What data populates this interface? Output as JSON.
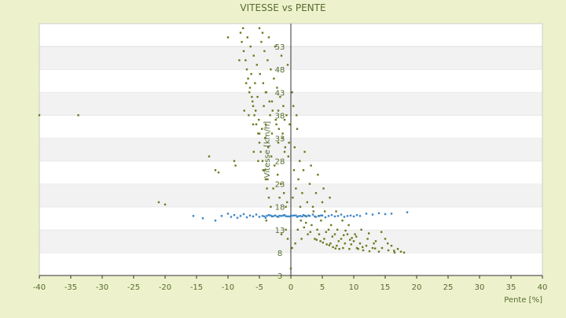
{
  "chart_data": {
    "type": "scatter",
    "title": "VITESSE vs PENTE",
    "xlabel": "Pente [%]",
    "ylabel": "Vitesse [km/h]",
    "xlim": [
      -40,
      40
    ],
    "ylim": [
      3,
      58
    ],
    "x_ticks": [
      -40,
      -35,
      -30,
      -25,
      -20,
      -15,
      -10,
      -5,
      0,
      5,
      10,
      15,
      20,
      25,
      30,
      35,
      40
    ],
    "y_tick_values": [
      3,
      8,
      13,
      18,
      23,
      28,
      33,
      38,
      43,
      48,
      53
    ],
    "y_tick_labels": [
      "3",
      "8",
      "13",
      "18",
      "23",
      "28",
      "33",
      "38",
      "43",
      "48",
      "53"
    ],
    "grid": "horizontal alternating bands",
    "legend": "none",
    "colors": {
      "background": "#eef2cc",
      "band_light": "#ffffff",
      "band_dark": "#f2f2f2",
      "text": "#556b2f",
      "series_a": "#6b7a1e",
      "series_b": "#3d85c6"
    },
    "series": [
      {
        "color": "#6b7a1e",
        "points": [
          [
            -40,
            38
          ],
          [
            -33.8,
            38
          ],
          [
            -21,
            19
          ],
          [
            -20,
            18.5
          ],
          [
            -13,
            29
          ],
          [
            -12,
            26
          ],
          [
            -11.5,
            25.5
          ],
          [
            -10,
            55
          ],
          [
            -9,
            28
          ],
          [
            -8.8,
            27
          ],
          [
            -8,
            56
          ],
          [
            -7.8,
            54
          ],
          [
            -7.5,
            52
          ],
          [
            -7.2,
            50
          ],
          [
            -7,
            48
          ],
          [
            -6.8,
            46
          ],
          [
            -6.5,
            44
          ],
          [
            -6.2,
            42
          ],
          [
            -6,
            40
          ],
          [
            -5.8,
            38
          ],
          [
            -5.5,
            36
          ],
          [
            -5.2,
            34
          ],
          [
            -5,
            32
          ],
          [
            -4.8,
            30
          ],
          [
            -4.5,
            28
          ],
          [
            -4.2,
            26
          ],
          [
            -4,
            24
          ],
          [
            -3.8,
            22
          ],
          [
            -3.5,
            20
          ],
          [
            -3.2,
            18
          ],
          [
            -7.6,
            57
          ],
          [
            -6.9,
            55
          ],
          [
            -6.4,
            53
          ],
          [
            -5.9,
            51
          ],
          [
            -5.4,
            49
          ],
          [
            -4.9,
            47
          ],
          [
            -4.4,
            45
          ],
          [
            -3.9,
            43
          ],
          [
            -3.4,
            41
          ],
          [
            -2.9,
            39
          ],
          [
            -2.4,
            37
          ],
          [
            -1.9,
            35
          ],
          [
            -1.4,
            33
          ],
          [
            -0.9,
            31
          ],
          [
            -0.4,
            29
          ],
          [
            -7.1,
            45
          ],
          [
            -6.6,
            43
          ],
          [
            -6.1,
            41
          ],
          [
            -5.6,
            39
          ],
          [
            -5.1,
            37
          ],
          [
            -4.6,
            35
          ],
          [
            -4.1,
            33
          ],
          [
            -3.6,
            31
          ],
          [
            -3.1,
            29
          ],
          [
            -2.6,
            27
          ],
          [
            -2.1,
            25
          ],
          [
            -1.6,
            23
          ],
          [
            -1.1,
            21
          ],
          [
            -0.6,
            19
          ],
          [
            -8.2,
            50
          ],
          [
            -4.7,
            54
          ],
          [
            -4.2,
            52
          ],
          [
            -3.7,
            50
          ],
          [
            -3.2,
            48
          ],
          [
            -2.7,
            46
          ],
          [
            -2.2,
            44
          ],
          [
            -1.7,
            42
          ],
          [
            -1.2,
            40
          ],
          [
            -0.7,
            38
          ],
          [
            -0.2,
            36
          ],
          [
            -5.3,
            42
          ],
          [
            -4.3,
            40
          ],
          [
            -3.3,
            38
          ],
          [
            -2.3,
            36
          ],
          [
            -1.3,
            34
          ],
          [
            -0.3,
            32
          ],
          [
            -6.3,
            47
          ],
          [
            -5.7,
            45
          ],
          [
            -4.0,
            43
          ],
          [
            -3.0,
            41
          ],
          [
            -2.0,
            39
          ],
          [
            -1.0,
            37
          ],
          [
            -5.0,
            57
          ],
          [
            -4.5,
            56
          ],
          [
            -3.5,
            55
          ],
          [
            -2.5,
            53
          ],
          [
            -1.5,
            51
          ],
          [
            -0.5,
            49
          ],
          [
            -6.0,
            36
          ],
          [
            -5.0,
            34
          ],
          [
            -4.0,
            36
          ],
          [
            -3.0,
            34
          ],
          [
            -2.0,
            32
          ],
          [
            -1.0,
            30
          ],
          [
            -7.4,
            39
          ],
          [
            -6.7,
            38
          ],
          [
            -5.9,
            30
          ],
          [
            -5.2,
            28
          ],
          [
            -4.4,
            26
          ],
          [
            -3.7,
            24
          ],
          [
            -2.8,
            22
          ],
          [
            -1.8,
            20
          ],
          [
            -0.8,
            18
          ],
          [
            -3.9,
            15
          ],
          [
            -1.5,
            12
          ],
          [
            -0.8,
            13
          ],
          [
            -0.5,
            11
          ],
          [
            0.2,
            9
          ],
          [
            0,
            4.5
          ],
          [
            0.3,
            20
          ],
          [
            0.8,
            22
          ],
          [
            1.2,
            24
          ],
          [
            1.5,
            18
          ],
          [
            1.8,
            21
          ],
          [
            2.0,
            26
          ],
          [
            2.3,
            16
          ],
          [
            2.6,
            19
          ],
          [
            3.0,
            23
          ],
          [
            3.3,
            14
          ],
          [
            3.6,
            17
          ],
          [
            4.0,
            21
          ],
          [
            4.2,
            13
          ],
          [
            4.5,
            12
          ],
          [
            4.8,
            15
          ],
          [
            5.0,
            19
          ],
          [
            5.3,
            11
          ],
          [
            5.6,
            12.5
          ],
          [
            6.0,
            13
          ],
          [
            6.3,
            10
          ],
          [
            6.6,
            11.5
          ],
          [
            7.0,
            12
          ],
          [
            7.3,
            9.5
          ],
          [
            7.6,
            10.5
          ],
          [
            8.0,
            11
          ],
          [
            8.3,
            9
          ],
          [
            8.6,
            10
          ],
          [
            9.0,
            12
          ],
          [
            9.3,
            8.8
          ],
          [
            9.6,
            9.8
          ],
          [
            10.0,
            10.5
          ],
          [
            10.5,
            9
          ],
          [
            11.0,
            10
          ],
          [
            11.5,
            8.5
          ],
          [
            12.0,
            9.5
          ],
          [
            12.5,
            8.3
          ],
          [
            13.0,
            9
          ],
          [
            13.5,
            10.5
          ],
          [
            14.0,
            8.2
          ],
          [
            14.5,
            9
          ],
          [
            15.0,
            11
          ],
          [
            15.5,
            8.5
          ],
          [
            16.0,
            9.5
          ],
          [
            16.5,
            8
          ],
          [
            17.0,
            8.8
          ],
          [
            17.5,
            8.2
          ],
          [
            18.0,
            8
          ],
          [
            1.0,
            35
          ],
          [
            0.6,
            31
          ],
          [
            1.4,
            28
          ],
          [
            2.2,
            30
          ],
          [
            3.2,
            27
          ],
          [
            4.3,
            25
          ],
          [
            5.2,
            22
          ],
          [
            6.2,
            20
          ],
          [
            7.2,
            17
          ],
          [
            8.2,
            15
          ],
          [
            9.2,
            14
          ],
          [
            10.2,
            12
          ],
          [
            11.2,
            13
          ],
          [
            12.2,
            11
          ],
          [
            13.2,
            10
          ],
          [
            3.8,
            11
          ],
          [
            4.7,
            10.5
          ],
          [
            5.7,
            9.8
          ],
          [
            6.7,
            9.2
          ],
          [
            7.7,
            8.8
          ],
          [
            8.7,
            12.8
          ],
          [
            9.7,
            11.2
          ],
          [
            10.7,
            8.8
          ],
          [
            2.7,
            12
          ],
          [
            1.7,
            11
          ],
          [
            0.7,
            10
          ],
          [
            1.1,
            13
          ],
          [
            2.1,
            13.5
          ],
          [
            3.1,
            12.5
          ],
          [
            4.1,
            10.8
          ],
          [
            5.1,
            10.2
          ],
          [
            6.1,
            9.6
          ],
          [
            7.1,
            8.9
          ],
          [
            0.4,
            40
          ],
          [
            0.9,
            38
          ],
          [
            0.2,
            43
          ],
          [
            0.5,
            26
          ],
          [
            1.6,
            15
          ],
          [
            2.4,
            14.5
          ],
          [
            3.5,
            18
          ],
          [
            4.4,
            16
          ],
          [
            5.4,
            17
          ],
          [
            6.4,
            14
          ],
          [
            7.4,
            13
          ],
          [
            8.4,
            11.8
          ],
          [
            9.4,
            10.8
          ],
          [
            10.4,
            11.5
          ],
          [
            11.4,
            9.2
          ],
          [
            12.4,
            12.2
          ],
          [
            13.4,
            8.9
          ],
          [
            14.4,
            12.5
          ],
          [
            15.4,
            10
          ],
          [
            16.4,
            8.4
          ]
        ]
      },
      {
        "color": "#3d85c6",
        "points": [
          [
            -15.5,
            16
          ],
          [
            -14,
            15.5
          ],
          [
            -12,
            15
          ],
          [
            -11,
            16
          ],
          [
            -10,
            16.5
          ],
          [
            -9.5,
            15.8
          ],
          [
            -9,
            16.2
          ],
          [
            -8.5,
            15.6
          ],
          [
            -8,
            16
          ],
          [
            -7.5,
            16.4
          ],
          [
            -7,
            15.7
          ],
          [
            -6.5,
            16.1
          ],
          [
            -6,
            15.9
          ],
          [
            -5.5,
            16.3
          ],
          [
            -5,
            15.8
          ],
          [
            -4.5,
            16
          ],
          [
            -4,
            15.6
          ],
          [
            -3.5,
            16.2
          ],
          [
            -3,
            15.9
          ],
          [
            -2.5,
            16.1
          ],
          [
            -2,
            15.8
          ],
          [
            -1.5,
            16
          ],
          [
            -1,
            16.2
          ],
          [
            -0.5,
            15.9
          ],
          [
            0,
            16
          ],
          [
            0.5,
            16.1
          ],
          [
            1,
            15.8
          ],
          [
            1.5,
            16
          ],
          [
            2,
            16.2
          ],
          [
            2.5,
            15.9
          ],
          [
            3,
            16
          ],
          [
            3.5,
            16.3
          ],
          [
            4,
            15.8
          ],
          [
            4.5,
            16
          ],
          [
            5,
            16.1
          ],
          [
            5.5,
            15.7
          ],
          [
            6,
            16
          ],
          [
            6.5,
            16.2
          ],
          [
            7,
            15.9
          ],
          [
            7.5,
            16
          ],
          [
            8,
            16.3
          ],
          [
            8.5,
            15.8
          ],
          [
            9,
            16
          ],
          [
            9.5,
            16.1
          ],
          [
            10,
            15.9
          ],
          [
            10.5,
            16.2
          ],
          [
            11,
            16
          ],
          [
            12,
            16.5
          ],
          [
            13,
            16.3
          ],
          [
            14,
            16.6
          ],
          [
            15,
            16.4
          ],
          [
            16,
            16.5
          ],
          [
            18.5,
            16.8
          ],
          [
            -3.8,
            16.05
          ],
          [
            -2.8,
            15.95
          ],
          [
            -1.8,
            16.05
          ],
          [
            -0.8,
            15.95
          ],
          [
            0.2,
            16.05
          ],
          [
            1.2,
            15.95
          ],
          [
            2.2,
            16.05
          ],
          [
            -4.2,
            15.9
          ],
          [
            -3.2,
            16.1
          ],
          [
            -2.2,
            15.9
          ],
          [
            -1.2,
            16.1
          ],
          [
            -0.2,
            15.9
          ],
          [
            0.8,
            16.1
          ],
          [
            1.8,
            15.9
          ],
          [
            2.8,
            16.1
          ],
          [
            3.8,
            15.9
          ],
          [
            4.8,
            16.1
          ]
        ]
      }
    ]
  }
}
